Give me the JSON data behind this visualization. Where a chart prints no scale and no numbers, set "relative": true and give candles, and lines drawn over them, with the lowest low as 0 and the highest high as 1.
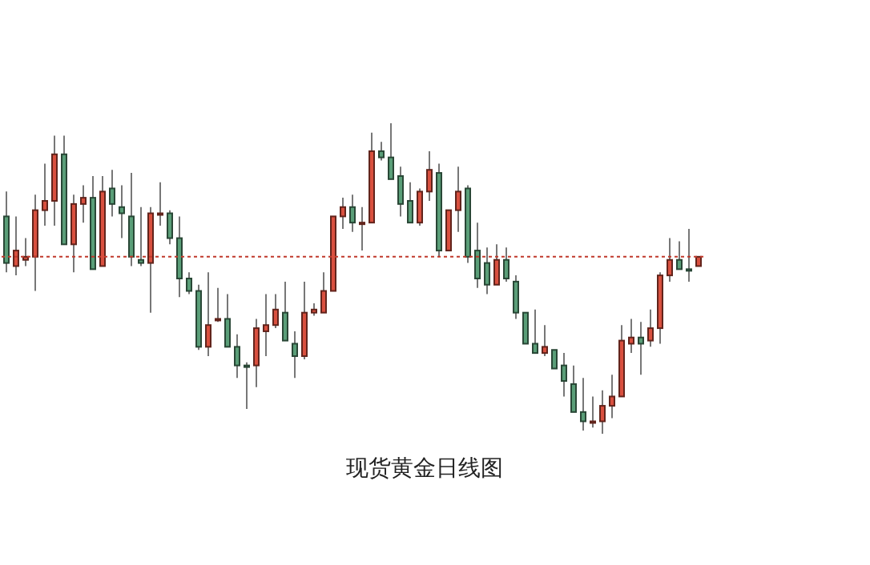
{
  "chart_data": {
    "type": "candlestick",
    "title": "现货黄金日线图",
    "relative": true,
    "categories": [
      null,
      null,
      null,
      null,
      null,
      null,
      null,
      null,
      null,
      null,
      null,
      null,
      null,
      null,
      null,
      null,
      null,
      null,
      null,
      null,
      null,
      null,
      null,
      null,
      null,
      null,
      null,
      null,
      null,
      null,
      null,
      null,
      null,
      null,
      null,
      null,
      null,
      null,
      null,
      null,
      null,
      null,
      null,
      null,
      null,
      null,
      null,
      null,
      null,
      null,
      null,
      null,
      null,
      null,
      null,
      null,
      null,
      null,
      null,
      null,
      null,
      null,
      null,
      null,
      null,
      null,
      null,
      null,
      null,
      null,
      null,
      null,
      null
    ],
    "ohlc": [
      [
        0.7,
        0.78,
        0.52,
        0.55
      ],
      [
        0.54,
        0.7,
        0.51,
        0.59
      ],
      [
        0.56,
        0.63,
        0.54,
        0.57
      ],
      [
        0.57,
        0.77,
        0.46,
        0.72
      ],
      [
        0.72,
        0.87,
        0.67,
        0.75
      ],
      [
        0.75,
        0.96,
        0.67,
        0.9
      ],
      [
        0.9,
        0.96,
        0.61,
        0.61
      ],
      [
        0.61,
        0.77,
        0.52,
        0.74
      ],
      [
        0.74,
        0.8,
        0.68,
        0.76
      ],
      [
        0.76,
        0.83,
        0.53,
        0.53
      ],
      [
        0.54,
        0.83,
        0.54,
        0.78
      ],
      [
        0.79,
        0.85,
        0.7,
        0.74
      ],
      [
        0.73,
        0.8,
        0.63,
        0.71
      ],
      [
        0.7,
        0.84,
        0.54,
        0.57
      ],
      [
        0.56,
        0.73,
        0.54,
        0.55
      ],
      [
        0.55,
        0.73,
        0.39,
        0.71
      ],
      [
        0.71,
        0.81,
        0.67,
        0.71
      ],
      [
        0.71,
        0.72,
        0.61,
        0.63
      ],
      [
        0.63,
        0.7,
        0.44,
        0.5
      ],
      [
        0.5,
        0.52,
        0.45,
        0.46
      ],
      [
        0.46,
        0.48,
        0.27,
        0.28
      ],
      [
        0.28,
        0.52,
        0.25,
        0.35
      ],
      [
        0.37,
        0.47,
        0.36,
        0.37
      ],
      [
        0.37,
        0.45,
        0.28,
        0.28
      ],
      [
        0.28,
        0.32,
        0.18,
        0.22
      ],
      [
        0.22,
        0.23,
        0.08,
        0.22
      ],
      [
        0.22,
        0.37,
        0.15,
        0.34
      ],
      [
        0.33,
        0.45,
        0.25,
        0.35
      ],
      [
        0.35,
        0.45,
        0.34,
        0.4
      ],
      [
        0.39,
        0.49,
        0.3,
        0.3
      ],
      [
        0.29,
        0.33,
        0.18,
        0.25
      ],
      [
        0.25,
        0.49,
        0.24,
        0.39
      ],
      [
        0.39,
        0.42,
        0.38,
        0.4
      ],
      [
        0.39,
        0.52,
        0.39,
        0.46
      ],
      [
        0.46,
        0.7,
        0.46,
        0.7
      ],
      [
        0.7,
        0.76,
        0.66,
        0.73
      ],
      [
        0.73,
        0.77,
        0.65,
        0.68
      ],
      [
        0.68,
        0.73,
        0.59,
        0.68
      ],
      [
        0.68,
        0.97,
        0.68,
        0.91
      ],
      [
        0.91,
        0.94,
        0.88,
        0.89
      ],
      [
        0.89,
        1.0,
        0.82,
        0.82
      ],
      [
        0.83,
        0.86,
        0.7,
        0.74
      ],
      [
        0.75,
        0.81,
        0.68,
        0.68
      ],
      [
        0.68,
        0.79,
        0.67,
        0.78
      ],
      [
        0.78,
        0.91,
        0.75,
        0.85
      ],
      [
        0.84,
        0.87,
        0.57,
        0.59
      ],
      [
        0.59,
        0.72,
        0.59,
        0.72
      ],
      [
        0.72,
        0.86,
        0.65,
        0.78
      ],
      [
        0.79,
        0.8,
        0.55,
        0.57
      ],
      [
        0.59,
        0.68,
        0.47,
        0.5
      ],
      [
        0.55,
        0.6,
        0.45,
        0.48
      ],
      [
        0.48,
        0.61,
        0.48,
        0.56
      ],
      [
        0.56,
        0.6,
        0.49,
        0.5
      ],
      [
        0.49,
        0.51,
        0.37,
        0.39
      ],
      [
        0.39,
        0.39,
        0.29,
        0.29
      ],
      [
        0.29,
        0.4,
        0.26,
        0.26
      ],
      [
        0.26,
        0.35,
        0.25,
        0.28
      ],
      [
        0.27,
        0.27,
        0.21,
        0.21
      ],
      [
        0.22,
        0.26,
        0.12,
        0.17
      ],
      [
        0.16,
        0.22,
        0.07,
        0.07
      ],
      [
        0.07,
        0.18,
        0.01,
        0.04
      ],
      [
        0.04,
        0.12,
        0.02,
        0.04
      ],
      [
        0.04,
        0.14,
        0.0,
        0.09
      ],
      [
        0.09,
        0.19,
        0.05,
        0.12
      ],
      [
        0.12,
        0.35,
        0.12,
        0.3
      ],
      [
        0.29,
        0.37,
        0.26,
        0.31
      ],
      [
        0.31,
        0.36,
        0.19,
        0.29
      ],
      [
        0.3,
        0.4,
        0.28,
        0.34
      ],
      [
        0.34,
        0.52,
        0.29,
        0.51
      ],
      [
        0.51,
        0.63,
        0.49,
        0.56
      ],
      [
        0.56,
        0.62,
        0.53,
        0.53
      ],
      [
        0.53,
        0.66,
        0.49,
        0.53
      ],
      [
        0.54,
        0.57,
        0.54,
        0.57
      ]
    ],
    "colors": [
      "#5a9e78",
      "#d9503f",
      "#d9503f",
      "#d9503f",
      "#d9503f",
      "#d9503f",
      "#5a9e78",
      "#d9503f",
      "#d9503f",
      "#5a9e78",
      "#d9503f",
      "#5a9e78",
      "#5a9e78",
      "#5a9e78",
      "#5a9e78",
      "#d9503f",
      "#d9503f",
      "#5a9e78",
      "#5a9e78",
      "#5a9e78",
      "#5a9e78",
      "#d9503f",
      "#d9503f",
      "#5a9e78",
      "#5a9e78",
      "#5a9e78",
      "#d9503f",
      "#d9503f",
      "#d9503f",
      "#5a9e78",
      "#5a9e78",
      "#d9503f",
      "#d9503f",
      "#d9503f",
      "#d9503f",
      "#d9503f",
      "#5a9e78",
      "#d9503f",
      "#d9503f",
      "#5a9e78",
      "#5a9e78",
      "#5a9e78",
      "#5a9e78",
      "#d9503f",
      "#d9503f",
      "#5a9e78",
      "#d9503f",
      "#d9503f",
      "#5a9e78",
      "#5a9e78",
      "#5a9e78",
      "#d9503f",
      "#5a9e78",
      "#5a9e78",
      "#5a9e78",
      "#5a9e78",
      "#d9503f",
      "#5a9e78",
      "#5a9e78",
      "#5a9e78",
      "#5a9e78",
      "#d9503f",
      "#d9503f",
      "#d9503f",
      "#d9503f",
      "#d9503f",
      "#5a9e78",
      "#d9503f",
      "#d9503f",
      "#d9503f",
      "#5a9e78",
      "#5a9e78",
      "#d9503f"
    ],
    "ref_lines": [
      {
        "axis": "y",
        "value": 0.57,
        "color": "#c0392b",
        "line_style": "dotted"
      }
    ]
  }
}
